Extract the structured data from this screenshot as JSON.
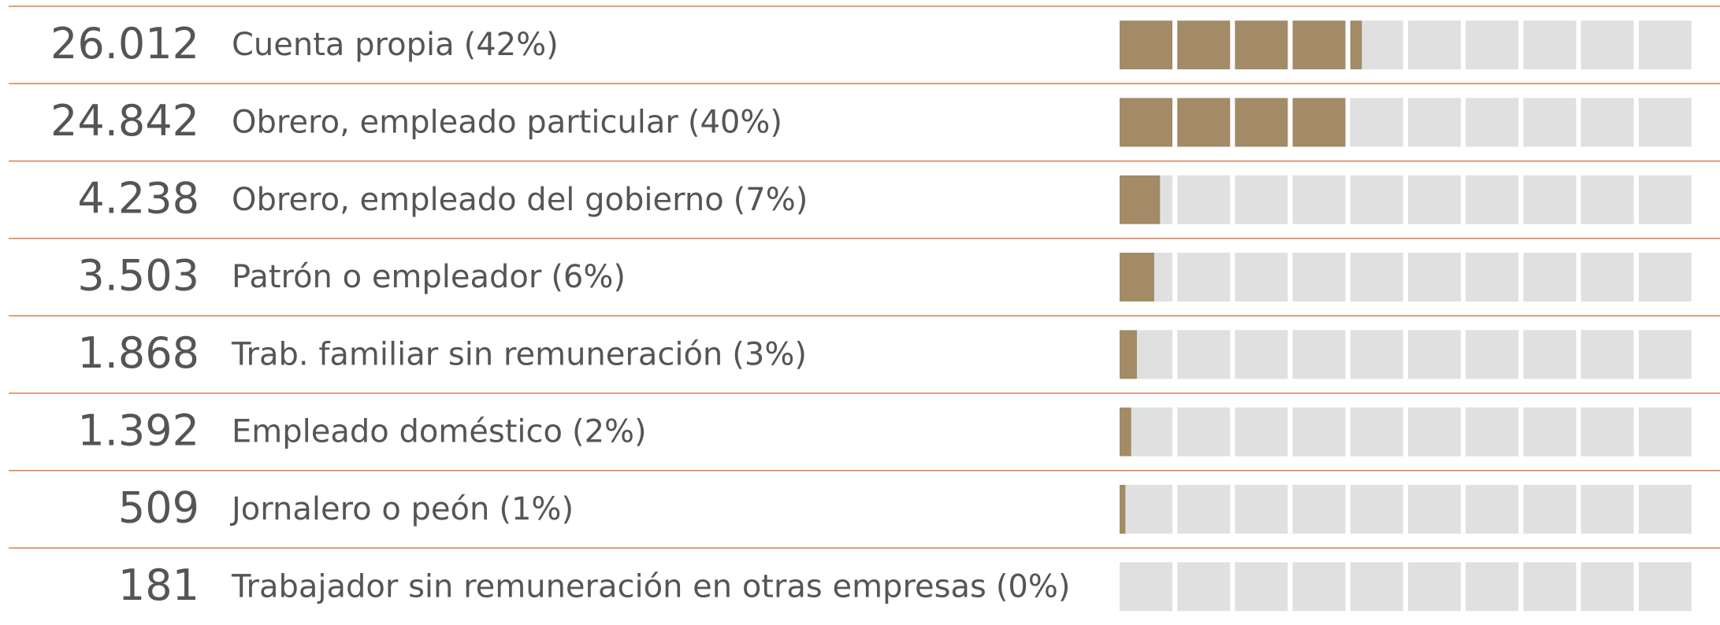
{
  "chart_data": {
    "type": "waffle-bar",
    "categories": [
      "Cuenta propia",
      "Obrero, empleado particular",
      "Obrero, empleado del gobierno",
      "Patrón o empleador",
      "Trab. familiar sin remuneración",
      "Empleado doméstico",
      "Jornalero o peón",
      "Trabajador sin remuneración en otras empresas"
    ],
    "values": [
      42,
      40,
      7,
      6,
      3,
      2,
      1,
      0
    ],
    "value_labels": [
      "(42%)",
      "(40%)",
      "(7%)",
      "(6%)",
      "(3%)",
      "(2%)",
      "(1%)",
      "(0%)"
    ],
    "counts": [
      26012,
      24842,
      4238,
      3503,
      1868,
      1392,
      509,
      181
    ],
    "count_labels": [
      "26.012",
      "24.842",
      "4.238",
      "3.503",
      "1.868",
      "1.392",
      "509",
      "181"
    ],
    "xlim": [
      0,
      100
    ],
    "color": "#a38b68"
  }
}
